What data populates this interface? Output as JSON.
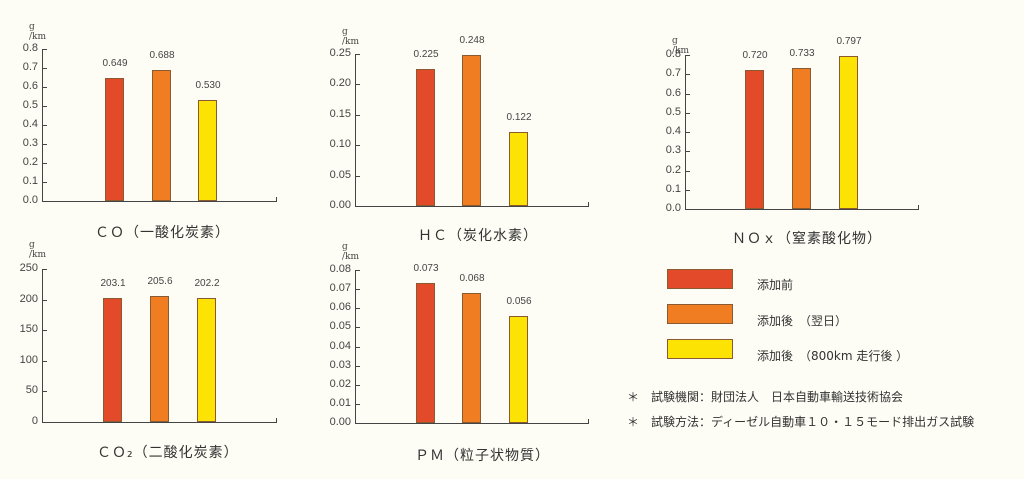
{
  "colors": {
    "before": "#e34a2a",
    "after_next_day": "#f07d22",
    "after_800km": "#fde303"
  },
  "chart_data": [
    {
      "type": "bar",
      "title": "ＣＯ（一酸化炭素）",
      "ylabel": "g /km",
      "ylim": [
        0,
        0.8
      ],
      "yticks": [
        "0.8",
        "0.7",
        "0.6",
        "0.5",
        "0.4",
        "0.3",
        "0.2",
        "0.1",
        "0.0"
      ],
      "categories": [
        "添加前",
        "添加後（翌日）",
        "添加後（800km走行後）"
      ],
      "values": [
        0.649,
        0.688,
        0.53
      ],
      "labels": [
        "0.649",
        "0.688",
        "0.530"
      ]
    },
    {
      "type": "bar",
      "title": "ＨＣ（炭化水素）",
      "ylabel": "g /km",
      "ylim": [
        0,
        0.25
      ],
      "yticks": [
        "0.25",
        "0.20",
        "0.15",
        "0.10",
        "0.05",
        "0.00"
      ],
      "categories": [
        "添加前",
        "添加後（翌日）",
        "添加後（800km走行後）"
      ],
      "values": [
        0.225,
        0.248,
        0.122
      ],
      "labels": [
        "0.225",
        "0.248",
        "0.122"
      ]
    },
    {
      "type": "bar",
      "title": "ＮＯｘ（窒素酸化物）",
      "ylabel": "g /km",
      "ylim": [
        0,
        0.8
      ],
      "yticks": [
        "0.8",
        "0.7",
        "0.6",
        "0.5",
        "0.4",
        "0.3",
        "0.2",
        "0.1",
        "0.0"
      ],
      "categories": [
        "添加前",
        "添加後（翌日）",
        "添加後（800km走行後）"
      ],
      "values": [
        0.72,
        0.733,
        0.797
      ],
      "labels": [
        "0.720",
        "0.733",
        "0.797"
      ]
    },
    {
      "type": "bar",
      "title": "ＣＯ₂（二酸化炭素）",
      "ylabel": "g /km",
      "ylim": [
        0,
        250
      ],
      "yticks": [
        "250",
        "200",
        "150",
        "100",
        "50",
        "0"
      ],
      "categories": [
        "添加前",
        "添加後（翌日）",
        "添加後（800km走行後）"
      ],
      "values": [
        203.1,
        205.6,
        202.2
      ],
      "labels": [
        "203.1",
        "205.6",
        "202.2"
      ]
    },
    {
      "type": "bar",
      "title": "ＰＭ（粒子状物質）",
      "ylabel": "g /km",
      "ylim": [
        0,
        0.08
      ],
      "yticks": [
        "0.08",
        "0.07",
        "0.06",
        "0.05",
        "0.04",
        "0.03",
        "0.02",
        "0.01",
        "0.00"
      ],
      "categories": [
        "添加前",
        "添加後（翌日）",
        "添加後（800km走行後）"
      ],
      "values": [
        0.073,
        0.068,
        0.056
      ],
      "labels": [
        "0.073",
        "0.068",
        "0.056"
      ]
    }
  ],
  "legend": [
    {
      "label": "添加前"
    },
    {
      "label": "添加後　（翌日）"
    },
    {
      "label": "添加後　（800km 走行後 ）"
    }
  ],
  "notes": [
    "＊　試験機関：財団法人　日本自動車輸送技術協会",
    "＊　試験方法：ディーゼル自動車１０・１５モード排出ガス試験"
  ]
}
